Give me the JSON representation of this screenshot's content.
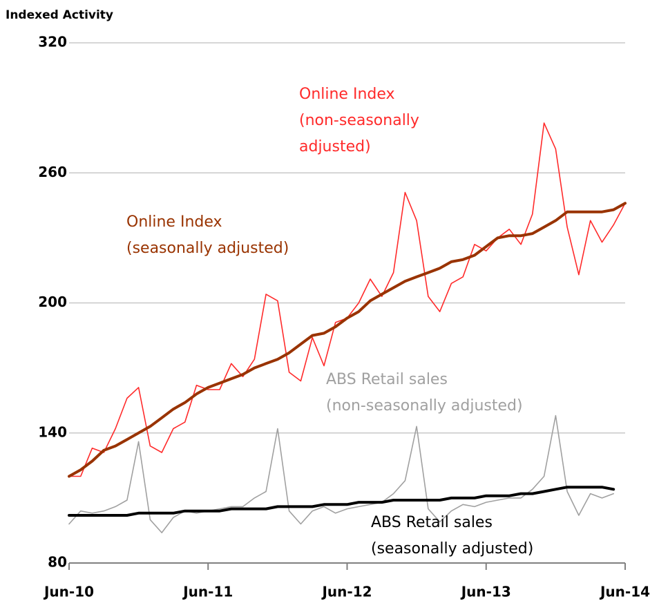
{
  "chart_data": {
    "type": "line",
    "title": "Indexed Activity",
    "categories": [
      "Jun-10",
      null,
      null,
      null,
      null,
      null,
      null,
      null,
      null,
      null,
      null,
      null,
      "Jun-11",
      null,
      null,
      null,
      null,
      null,
      null,
      null,
      null,
      null,
      null,
      null,
      "Jun-12",
      null,
      null,
      null,
      null,
      null,
      null,
      null,
      null,
      null,
      null,
      null,
      "Jun-13",
      null,
      null,
      null,
      null,
      null,
      null,
      null,
      null,
      null,
      null,
      null,
      "Jun-14"
    ],
    "series": [
      {
        "name": "Online Index (non-seasonally adjusted)",
        "color": "#ff2a2a",
        "width": 1.6,
        "values": [
          120,
          120,
          133,
          131,
          142,
          156,
          161,
          134,
          131,
          142,
          145,
          162,
          160,
          160,
          172,
          166,
          174,
          204,
          201,
          168,
          164,
          184,
          171,
          191,
          193,
          200,
          211,
          203,
          214,
          251,
          238,
          203,
          196,
          209,
          212,
          227,
          224,
          230,
          234,
          227,
          241,
          283,
          271,
          235,
          213,
          238,
          228,
          236,
          246
        ]
      },
      {
        "name": "Online Index (seasonally adjusted)",
        "color": "#993300",
        "width": 4,
        "values": [
          120,
          123,
          127,
          132,
          134,
          137,
          140,
          143,
          147,
          151,
          154,
          158,
          161,
          163,
          165,
          167,
          170,
          172,
          174,
          177,
          181,
          185,
          186,
          189,
          193,
          196,
          201,
          204,
          207,
          210,
          212,
          214,
          216,
          219,
          220,
          222,
          226,
          230,
          231,
          231,
          232,
          235,
          238,
          242,
          242,
          242,
          242,
          243,
          246
        ]
      },
      {
        "name": "ABS Retail sales (non-seasonally adjusted)",
        "color": "#a0a0a0",
        "width": 1.6,
        "values": [
          98,
          104,
          103,
          104,
          106,
          109,
          136,
          100,
          94,
          101,
          104,
          103,
          104,
          105,
          106,
          106,
          110,
          113,
          142,
          104,
          98,
          104,
          106,
          103,
          105,
          106,
          107,
          108,
          112,
          118,
          143,
          105,
          99,
          104,
          107,
          106,
          108,
          109,
          110,
          110,
          114,
          120,
          148,
          113,
          102,
          112,
          110,
          112,
          null
        ]
      },
      {
        "name": "ABS Retail sales (seasonally adjusted)",
        "color": "#000000",
        "width": 4,
        "values": [
          102,
          102,
          102,
          102,
          102,
          102,
          103,
          103,
          103,
          103,
          104,
          104,
          104,
          104,
          105,
          105,
          105,
          105,
          106,
          106,
          106,
          106,
          107,
          107,
          107,
          108,
          108,
          108,
          109,
          109,
          109,
          109,
          109,
          110,
          110,
          110,
          111,
          111,
          111,
          112,
          112,
          113,
          114,
          115,
          115,
          115,
          115,
          114,
          null
        ]
      }
    ],
    "annotations": [
      {
        "lines": [
          "Online Index",
          "(non-seasonally",
          "adjusted)"
        ],
        "color": "#ff2a2a"
      },
      {
        "lines": [
          "Online Index",
          "(seasonally adjusted)"
        ],
        "color": "#993300"
      },
      {
        "lines": [
          "ABS Retail sales",
          "(non-seasonally adjusted)"
        ],
        "color": "#a0a0a0"
      },
      {
        "lines": [
          "ABS Retail sales",
          "(seasonally adjusted)"
        ],
        "color": "#000000"
      }
    ],
    "ylim": [
      80,
      320
    ],
    "yticks": [
      80,
      140,
      200,
      260,
      320
    ],
    "grid": true
  }
}
